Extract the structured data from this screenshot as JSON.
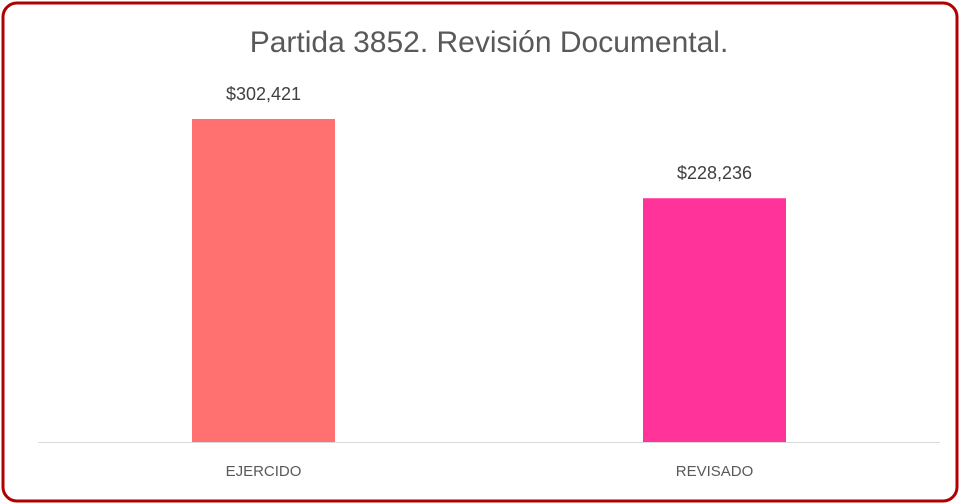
{
  "chart_data": {
    "type": "bar",
    "title": "Partida 3852. Revisión Documental.",
    "categories": [
      "EJERCIDO",
      "REVISADO"
    ],
    "values": [
      302421,
      228236
    ],
    "value_labels": [
      "$302,421",
      "$228,236"
    ],
    "colors": [
      "#ff7171",
      "#ff3399"
    ]
  }
}
